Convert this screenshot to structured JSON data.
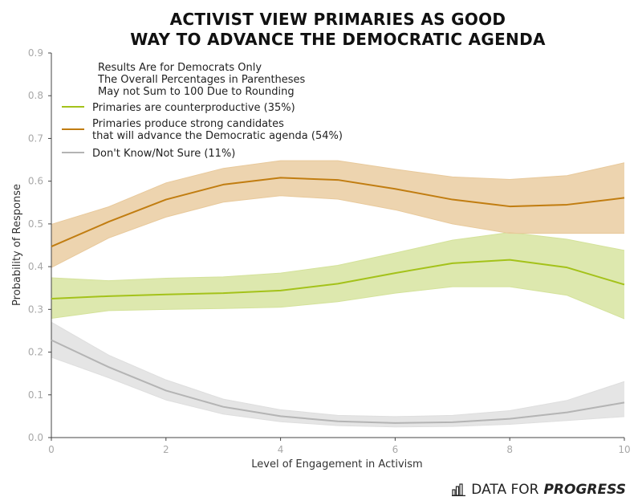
{
  "chart_data": {
    "type": "line",
    "title_lines": [
      "ACTIVIST VIEW PRIMARIES AS GOOD",
      "WAY TO ADVANCE THE DEMOCRATIC AGENDA"
    ],
    "xlabel": "Level of Engagement in Activism",
    "ylabel": "Probability of Response",
    "xlim": [
      0,
      10
    ],
    "ylim": [
      0.0,
      0.9
    ],
    "x_ticks": [
      "0",
      "2",
      "4",
      "6",
      "8",
      "10"
    ],
    "y_ticks": [
      "0.0",
      "0.1",
      "0.2",
      "0.3",
      "0.4",
      "0.5",
      "0.6",
      "0.7",
      "0.8",
      "0.9"
    ],
    "legend_notes": [
      "Results Are for Democrats Only",
      "The Overall Percentages in Parentheses",
      "May not Sum to 100 Due to Rounding"
    ],
    "x": [
      0,
      1,
      2,
      3,
      4,
      5,
      6,
      7,
      8,
      9,
      10
    ],
    "series": [
      {
        "name": "Primaries are counterproductive (35%)",
        "label_lines": [
          "Primaries are counterproductive (35%)"
        ],
        "color": "#a4c21a",
        "band_color": "#d4e29a",
        "values": [
          0.325,
          0.331,
          0.335,
          0.338,
          0.344,
          0.36,
          0.385,
          0.408,
          0.416,
          0.398,
          0.358
        ],
        "lower": [
          0.279,
          0.297,
          0.3,
          0.302,
          0.305,
          0.318,
          0.338,
          0.353,
          0.353,
          0.333,
          0.278
        ],
        "upper": [
          0.374,
          0.367,
          0.373,
          0.376,
          0.385,
          0.403,
          0.432,
          0.462,
          0.48,
          0.464,
          0.438
        ]
      },
      {
        "name": "Primaries produce strong candidates that will advance the Democratic agenda (54%)",
        "label_lines": [
          "Primaries produce strong candidates",
          "that will advance the Democratic agenda (54%)"
        ],
        "color": "#c17d11",
        "band_color": "#e8c99b",
        "values": [
          0.447,
          0.505,
          0.557,
          0.592,
          0.608,
          0.603,
          0.582,
          0.557,
          0.541,
          0.545,
          0.561
        ],
        "lower": [
          0.398,
          0.467,
          0.516,
          0.551,
          0.566,
          0.558,
          0.533,
          0.5,
          0.478,
          0.478,
          0.478
        ],
        "upper": [
          0.499,
          0.54,
          0.596,
          0.63,
          0.648,
          0.648,
          0.628,
          0.61,
          0.604,
          0.613,
          0.643
        ]
      },
      {
        "name": "Don't Know/Not Sure (11%)",
        "label_lines": [
          "Don't Know/Not Sure (11%)"
        ],
        "color": "#b4b4b4",
        "band_color": "#dedede",
        "values": [
          0.228,
          0.165,
          0.11,
          0.072,
          0.05,
          0.038,
          0.034,
          0.036,
          0.044,
          0.059,
          0.082
        ],
        "lower": [
          0.188,
          0.14,
          0.088,
          0.055,
          0.037,
          0.028,
          0.025,
          0.026,
          0.031,
          0.04,
          0.049
        ],
        "upper": [
          0.27,
          0.193,
          0.135,
          0.09,
          0.065,
          0.052,
          0.049,
          0.052,
          0.063,
          0.087,
          0.131
        ]
      }
    ]
  },
  "branding": {
    "prefix": "DATA FOR",
    "emphasis": "PROGRESS"
  }
}
